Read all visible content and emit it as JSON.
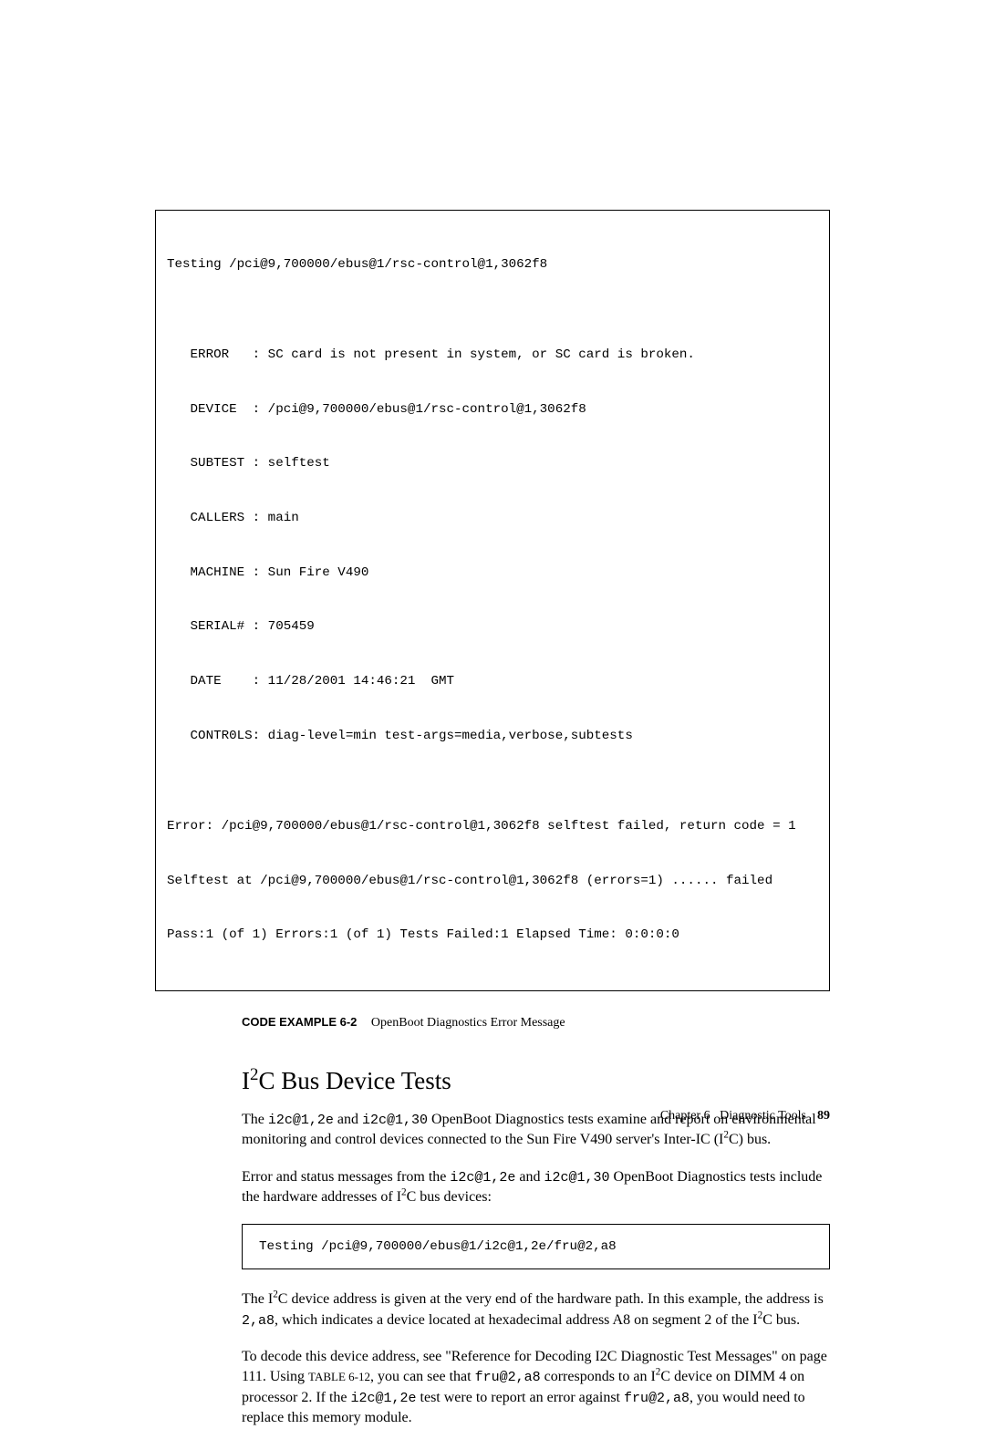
{
  "codeBox1": {
    "lines": [
      "Testing /pci@9,700000/ebus@1/rsc-control@1,3062f8",
      "",
      "   ERROR   : SC card is not present in system, or SC card is broken.",
      "   DEVICE  : /pci@9,700000/ebus@1/rsc-control@1,3062f8",
      "   SUBTEST : selftest",
      "   CALLERS : main",
      "   MACHINE : Sun Fire V490",
      "   SERIAL# : 705459",
      "   DATE    : 11/28/2001 14:46:21  GMT",
      "   CONTR0LS: diag-level=min test-args=media,verbose,subtests",
      "",
      "Error: /pci@9,700000/ebus@1/rsc-control@1,3062f8 selftest failed, return code = 1",
      "Selftest at /pci@9,700000/ebus@1/rsc-control@1,3062f8 (errors=1) ...... failed",
      "Pass:1 (of 1) Errors:1 (of 1) Tests Failed:1 Elapsed Time: 0:0:0:0"
    ]
  },
  "caption": {
    "label": "CODE EXAMPLE 6-2",
    "text": "OpenBoot Diagnostics Error Message"
  },
  "heading_pre": "I",
  "heading_sup": "2",
  "heading_post": "C Bus Device Tests",
  "para1": {
    "t1": "The ",
    "m1": "i2c@1,2e",
    "t2": " and ",
    "m2": "i2c@1,30",
    "t3": " OpenBoot Diagnostics tests examine and report on environmental monitoring and control devices connected to the Sun Fire V490 server's Inter-IC (I",
    "sup1": "2",
    "t4": "C) bus."
  },
  "para2": {
    "t1": "Error and status messages from the ",
    "m1": "i2c@1,2e",
    "t2": " and ",
    "m2": "i2c@1,30",
    "t3": " OpenBoot Diagnostics tests include the hardware addresses of I",
    "sup1": "2",
    "t4": "C bus devices:"
  },
  "codeBox2": "Testing /pci@9,700000/ebus@1/i2c@1,2e/fru@2,a8",
  "para3": {
    "t1": "The I",
    "sup1": "2",
    "t2": "C device address is given at the very end of the hardware path. In this example, the address is ",
    "m1": "2,a8",
    "t3": ", which indicates a device located at hexadecimal address A8 on segment 2 of the I",
    "sup2": "2",
    "t4": "C bus."
  },
  "para4": {
    "t1": "To decode this device address, see \"Reference for Decoding I2C Diagnostic Test Messages\" on page 111. Using ",
    "sc1": "TABLE 6-12",
    "t2": ", you can see that ",
    "m1": "fru@2,a8",
    "t3": " corresponds to an I",
    "sup1": "2",
    "t4": "C device on DIMM 4 on processor 2. If the ",
    "m2": "i2c@1,2e",
    "t5": " test were to report an error against ",
    "m3": "fru@2,a8",
    "t6": ", you would need to replace this memory module."
  },
  "footer": {
    "chapter": "Chapter 6",
    "title": "Diagnostic Tools",
    "page": "89"
  }
}
